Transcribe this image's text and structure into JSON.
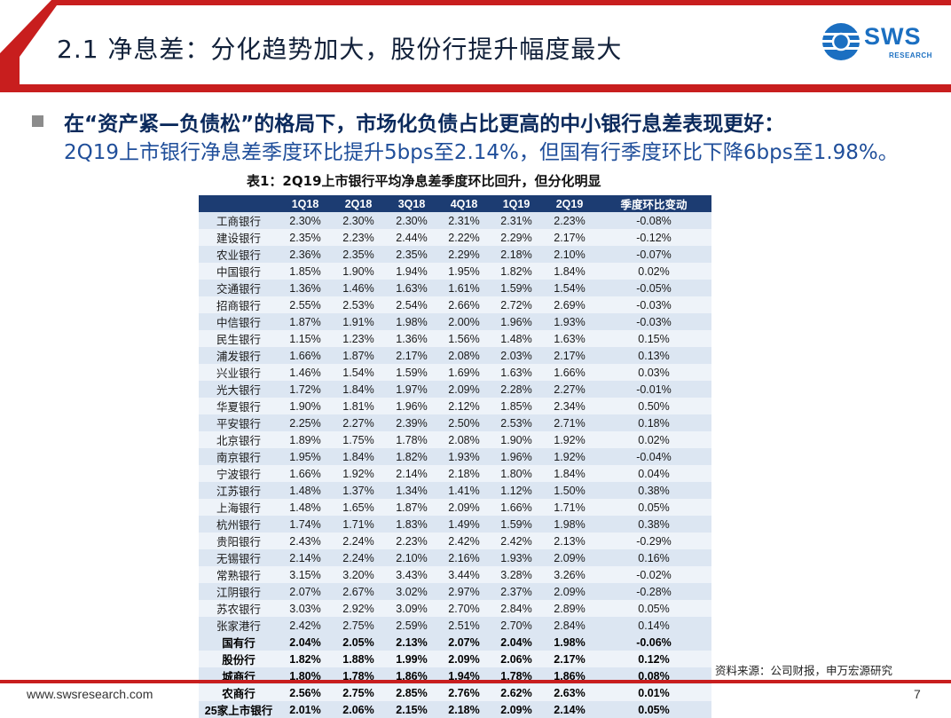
{
  "header": {
    "title": "2.1 净息差：分化趋势加大，股份行提升幅度最大",
    "logo_text": "SWS",
    "logo_sub": "RESEARCH",
    "accent_color": "#c81e1e",
    "logo_icon": "sws-logo-icon"
  },
  "bullet": {
    "headline": "在“资产紧—负债松”的格局下，市场化负债占比更高的中小银行息差表现更好：",
    "body": "2Q19上市银行净息差季度环比提升5bps至2.14%，但国有行季度环比下降6bps至1.98%。"
  },
  "table": {
    "title": "表1：2Q19上市银行平均净息差季度环比回升，但分化明显",
    "columns": [
      "",
      "1Q18",
      "2Q18",
      "3Q18",
      "4Q18",
      "1Q19",
      "2Q19",
      "季度环比变动"
    ],
    "rows": [
      [
        "工商银行",
        "2.30%",
        "2.30%",
        "2.30%",
        "2.31%",
        "2.31%",
        "2.23%",
        "-0.08%"
      ],
      [
        "建设银行",
        "2.35%",
        "2.23%",
        "2.44%",
        "2.22%",
        "2.29%",
        "2.17%",
        "-0.12%"
      ],
      [
        "农业银行",
        "2.36%",
        "2.35%",
        "2.35%",
        "2.29%",
        "2.18%",
        "2.10%",
        "-0.07%"
      ],
      [
        "中国银行",
        "1.85%",
        "1.90%",
        "1.94%",
        "1.95%",
        "1.82%",
        "1.84%",
        "0.02%"
      ],
      [
        "交通银行",
        "1.36%",
        "1.46%",
        "1.63%",
        "1.61%",
        "1.59%",
        "1.54%",
        "-0.05%"
      ],
      [
        "招商银行",
        "2.55%",
        "2.53%",
        "2.54%",
        "2.66%",
        "2.72%",
        "2.69%",
        "-0.03%"
      ],
      [
        "中信银行",
        "1.87%",
        "1.91%",
        "1.98%",
        "2.00%",
        "1.96%",
        "1.93%",
        "-0.03%"
      ],
      [
        "民生银行",
        "1.15%",
        "1.23%",
        "1.36%",
        "1.56%",
        "1.48%",
        "1.63%",
        "0.15%"
      ],
      [
        "浦发银行",
        "1.66%",
        "1.87%",
        "2.17%",
        "2.08%",
        "2.03%",
        "2.17%",
        "0.13%"
      ],
      [
        "兴业银行",
        "1.46%",
        "1.54%",
        "1.59%",
        "1.69%",
        "1.63%",
        "1.66%",
        "0.03%"
      ],
      [
        "光大银行",
        "1.72%",
        "1.84%",
        "1.97%",
        "2.09%",
        "2.28%",
        "2.27%",
        "-0.01%"
      ],
      [
        "华夏银行",
        "1.90%",
        "1.81%",
        "1.96%",
        "2.12%",
        "1.85%",
        "2.34%",
        "0.50%"
      ],
      [
        "平安银行",
        "2.25%",
        "2.27%",
        "2.39%",
        "2.50%",
        "2.53%",
        "2.71%",
        "0.18%"
      ],
      [
        "北京银行",
        "1.89%",
        "1.75%",
        "1.78%",
        "2.08%",
        "1.90%",
        "1.92%",
        "0.02%"
      ],
      [
        "南京银行",
        "1.95%",
        "1.84%",
        "1.82%",
        "1.93%",
        "1.96%",
        "1.92%",
        "-0.04%"
      ],
      [
        "宁波银行",
        "1.66%",
        "1.92%",
        "2.14%",
        "2.18%",
        "1.80%",
        "1.84%",
        "0.04%"
      ],
      [
        "江苏银行",
        "1.48%",
        "1.37%",
        "1.34%",
        "1.41%",
        "1.12%",
        "1.50%",
        "0.38%"
      ],
      [
        "上海银行",
        "1.48%",
        "1.65%",
        "1.87%",
        "2.09%",
        "1.66%",
        "1.71%",
        "0.05%"
      ],
      [
        "杭州银行",
        "1.74%",
        "1.71%",
        "1.83%",
        "1.49%",
        "1.59%",
        "1.98%",
        "0.38%"
      ],
      [
        "贵阳银行",
        "2.43%",
        "2.24%",
        "2.23%",
        "2.42%",
        "2.42%",
        "2.13%",
        "-0.29%"
      ],
      [
        "无锡银行",
        "2.14%",
        "2.24%",
        "2.10%",
        "2.16%",
        "1.93%",
        "2.09%",
        "0.16%"
      ],
      [
        "常熟银行",
        "3.15%",
        "3.20%",
        "3.43%",
        "3.44%",
        "3.28%",
        "3.26%",
        "-0.02%"
      ],
      [
        "江阴银行",
        "2.07%",
        "2.67%",
        "3.02%",
        "2.97%",
        "2.37%",
        "2.09%",
        "-0.28%"
      ],
      [
        "苏农银行",
        "3.03%",
        "2.92%",
        "3.09%",
        "2.70%",
        "2.84%",
        "2.89%",
        "0.05%"
      ],
      [
        "张家港行",
        "2.42%",
        "2.75%",
        "2.59%",
        "2.51%",
        "2.70%",
        "2.84%",
        "0.14%"
      ]
    ],
    "aggregate_rows": [
      [
        "国有行",
        "2.04%",
        "2.05%",
        "2.13%",
        "2.07%",
        "2.04%",
        "1.98%",
        "-0.06%"
      ],
      [
        "股份行",
        "1.82%",
        "1.88%",
        "1.99%",
        "2.09%",
        "2.06%",
        "2.17%",
        "0.12%"
      ],
      [
        "城商行",
        "1.80%",
        "1.78%",
        "1.86%",
        "1.94%",
        "1.78%",
        "1.86%",
        "0.08%"
      ],
      [
        "农商行",
        "2.56%",
        "2.75%",
        "2.85%",
        "2.76%",
        "2.62%",
        "2.63%",
        "0.01%"
      ],
      [
        "25家上市银行",
        "2.01%",
        "2.06%",
        "2.15%",
        "2.18%",
        "2.09%",
        "2.14%",
        "0.05%"
      ]
    ],
    "header_color": "#1c3c72",
    "row_color_a": "#dce6f2",
    "row_color_b": "#eef3f9"
  },
  "source": "资料来源：公司财报，申万宏源研究",
  "footer": {
    "url": "www.swsresearch.com",
    "page": "7"
  }
}
